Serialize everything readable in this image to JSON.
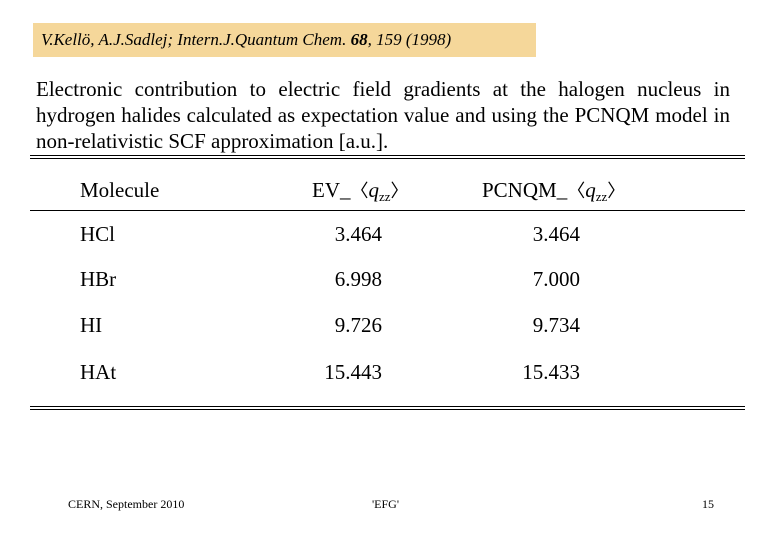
{
  "citation": {
    "authors": "V.Kellö, A.J.Sadlej; Intern.J.Quantum Chem. ",
    "volume": "68",
    "rest": ", 159 (1998)"
  },
  "caption": "Electronic contribution to electric field gradients at the halogen nucleus in hydrogen halides calculated as expectation value and using the PCNQM model in non-relativistic SCF approximation [a.u.].",
  "table": {
    "headers": {
      "molecule": "Molecule",
      "ev_prefix": "EV_",
      "pcnqm_prefix": "PCNQM_",
      "q": "q",
      "q_sub": "zz",
      "lang": "〈",
      "rang": "〉"
    },
    "rows": [
      {
        "molecule": "HCl",
        "ev": "3.464",
        "pcnqm": "3.464"
      },
      {
        "molecule": "HBr",
        "ev": "6.998",
        "pcnqm": "7.000"
      },
      {
        "molecule": "HI",
        "ev": "9.726",
        "pcnqm": "9.734"
      },
      {
        "molecule": "HAt",
        "ev": "15.443",
        "pcnqm": "15.433"
      }
    ]
  },
  "footer": {
    "left": "CERN, September 2010",
    "center": "'EFG'",
    "right": "15"
  },
  "colors": {
    "citation_background": "#f5d79a"
  }
}
